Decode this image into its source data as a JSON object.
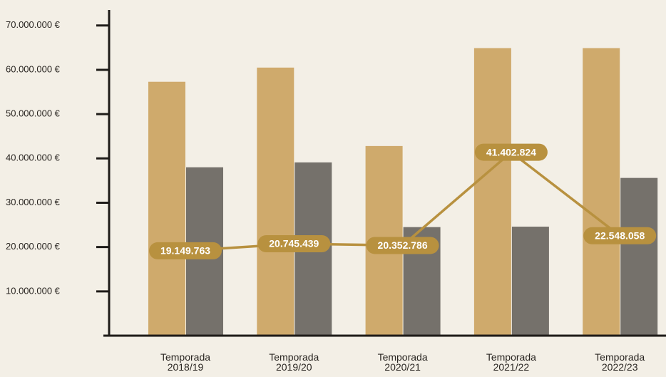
{
  "chart_data": {
    "type": "bar",
    "categories": [
      "Temporada 2018/19",
      "Temporada 2019/20",
      "Temporada 2020/21",
      "Temporada 2021/22",
      "Temporada 2022/23"
    ],
    "series": [
      {
        "color": "#cfaa6c",
        "values": [
          57300000,
          60500000,
          42800000,
          64900000,
          64900000
        ]
      },
      {
        "color": "#75716b",
        "values": [
          38000000,
          39100000,
          24500000,
          24600000,
          35600000
        ]
      },
      {
        "type": "line",
        "color": "#b8913f",
        "values": [
          19149763,
          20745439,
          20352786,
          41402824,
          22548058
        ],
        "value_labels": [
          "19.149.763",
          "20.745.439",
          "20.352.786",
          "41.402.824",
          "22.548.058"
        ]
      }
    ],
    "ylim": [
      0,
      73500000
    ],
    "yticks": [
      {
        "value": 10000000,
        "label": "10.000.000 €"
      },
      {
        "value": 20000000,
        "label": "20.000.000 €"
      },
      {
        "value": 30000000,
        "label": "30.000.000 €"
      },
      {
        "value": 40000000,
        "label": "40.000.000 €"
      },
      {
        "value": 50000000,
        "label": "50.000.000 €"
      },
      {
        "value": 60000000,
        "label": "60.000.000 €"
      },
      {
        "value": 70000000,
        "label": "70.000.000 €"
      }
    ]
  }
}
